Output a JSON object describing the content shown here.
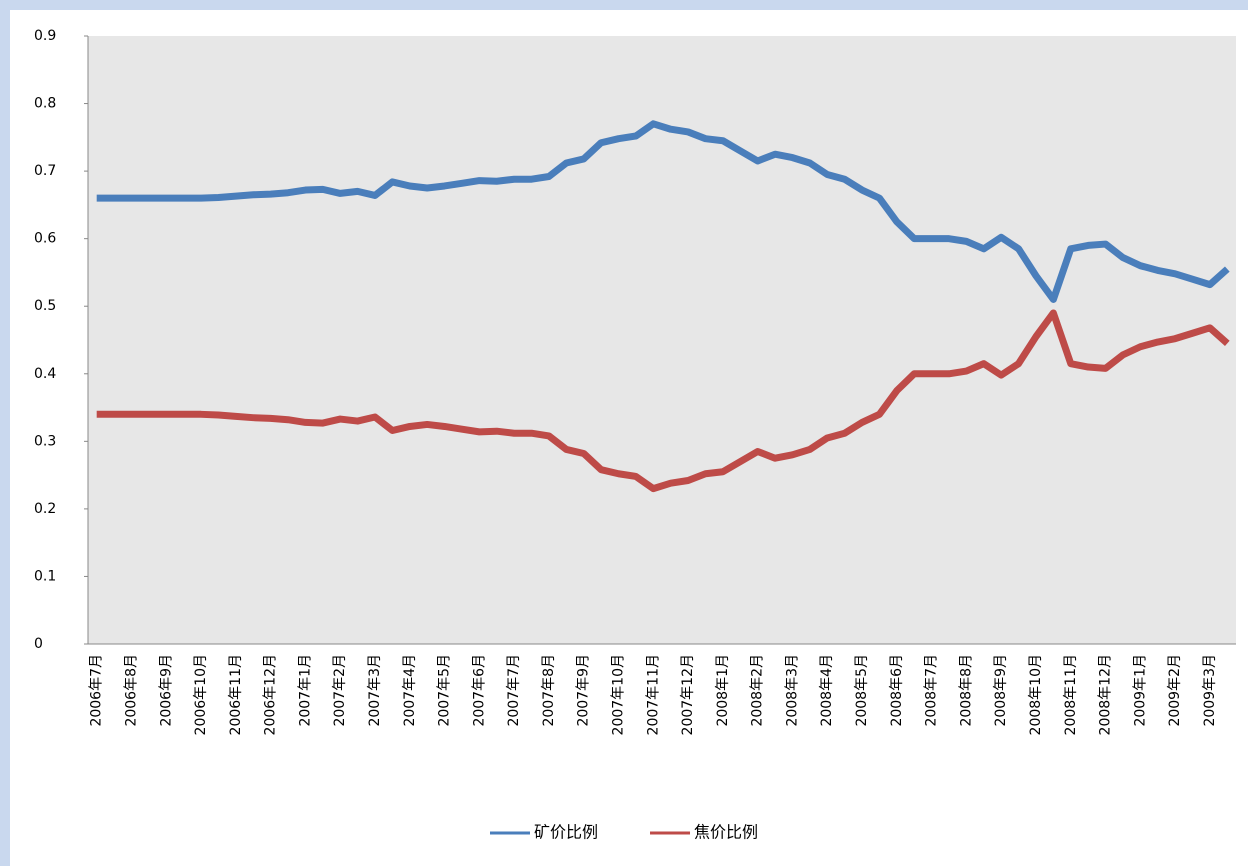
{
  "chart_data": {
    "type": "line",
    "categories": [
      "2006年7月",
      null,
      "2006年8月",
      null,
      "2006年9月",
      null,
      "2006年10月",
      null,
      "2006年11月",
      null,
      "2006年12月",
      null,
      "2007年1月",
      null,
      "2007年2月",
      null,
      "2007年3月",
      null,
      "2007年4月",
      null,
      "2007年5月",
      null,
      "2007年6月",
      null,
      "2007年7月",
      null,
      "2007年8月",
      null,
      "2007年9月",
      null,
      "2007年10月",
      null,
      "2007年11月",
      null,
      "2007年12月",
      null,
      "2008年1月",
      null,
      "2008年2月",
      null,
      "2008年3月",
      null,
      "2008年4月",
      null,
      "2008年5月",
      null,
      "2008年6月",
      null,
      "2008年7月",
      null,
      "2008年8月",
      null,
      "2008年9月",
      null,
      "2008年10月",
      null,
      "2008年11月",
      null,
      "2008年12月",
      null,
      "2009年1月",
      null,
      "2009年2月",
      null,
      "2009年3月",
      null
    ],
    "series": [
      {
        "name": "矿价比例",
        "color": "#4a7ebb",
        "values": [
          0.66,
          0.66,
          0.66,
          0.66,
          0.66,
          0.66,
          0.66,
          0.661,
          0.663,
          0.665,
          0.666,
          0.668,
          0.672,
          0.673,
          0.667,
          0.67,
          0.664,
          0.684,
          0.678,
          0.675,
          0.678,
          0.682,
          0.686,
          0.685,
          0.688,
          0.688,
          0.692,
          0.712,
          0.718,
          0.742,
          0.748,
          0.752,
          0.77,
          0.762,
          0.758,
          0.748,
          0.745,
          0.73,
          0.715,
          0.725,
          0.72,
          0.712,
          0.695,
          0.688,
          0.672,
          0.66,
          0.625,
          0.6,
          0.6,
          0.6,
          0.596,
          0.585,
          0.602,
          0.585,
          0.545,
          0.51,
          0.585,
          0.59,
          0.592,
          0.572,
          0.56,
          0.553,
          0.548,
          0.54,
          0.532,
          0.555
        ]
      },
      {
        "name": "焦价比例",
        "color": "#be4b48",
        "values": [
          0.34,
          0.34,
          0.34,
          0.34,
          0.34,
          0.34,
          0.34,
          0.339,
          0.337,
          0.335,
          0.334,
          0.332,
          0.328,
          0.327,
          0.333,
          0.33,
          0.336,
          0.316,
          0.322,
          0.325,
          0.322,
          0.318,
          0.314,
          0.315,
          0.312,
          0.312,
          0.308,
          0.288,
          0.282,
          0.258,
          0.252,
          0.248,
          0.23,
          0.238,
          0.242,
          0.252,
          0.255,
          0.27,
          0.285,
          0.275,
          0.28,
          0.288,
          0.305,
          0.312,
          0.328,
          0.34,
          0.375,
          0.4,
          0.4,
          0.4,
          0.404,
          0.415,
          0.398,
          0.415,
          0.455,
          0.49,
          0.415,
          0.41,
          0.408,
          0.428,
          0.44,
          0.447,
          0.452,
          0.46,
          0.468,
          0.445
        ]
      }
    ],
    "ylim": [
      0,
      0.9
    ],
    "yticks": [
      0,
      0.1,
      0.2,
      0.3,
      0.4,
      0.5,
      0.6,
      0.7,
      0.8,
      0.9
    ],
    "legend": "bottom"
  }
}
